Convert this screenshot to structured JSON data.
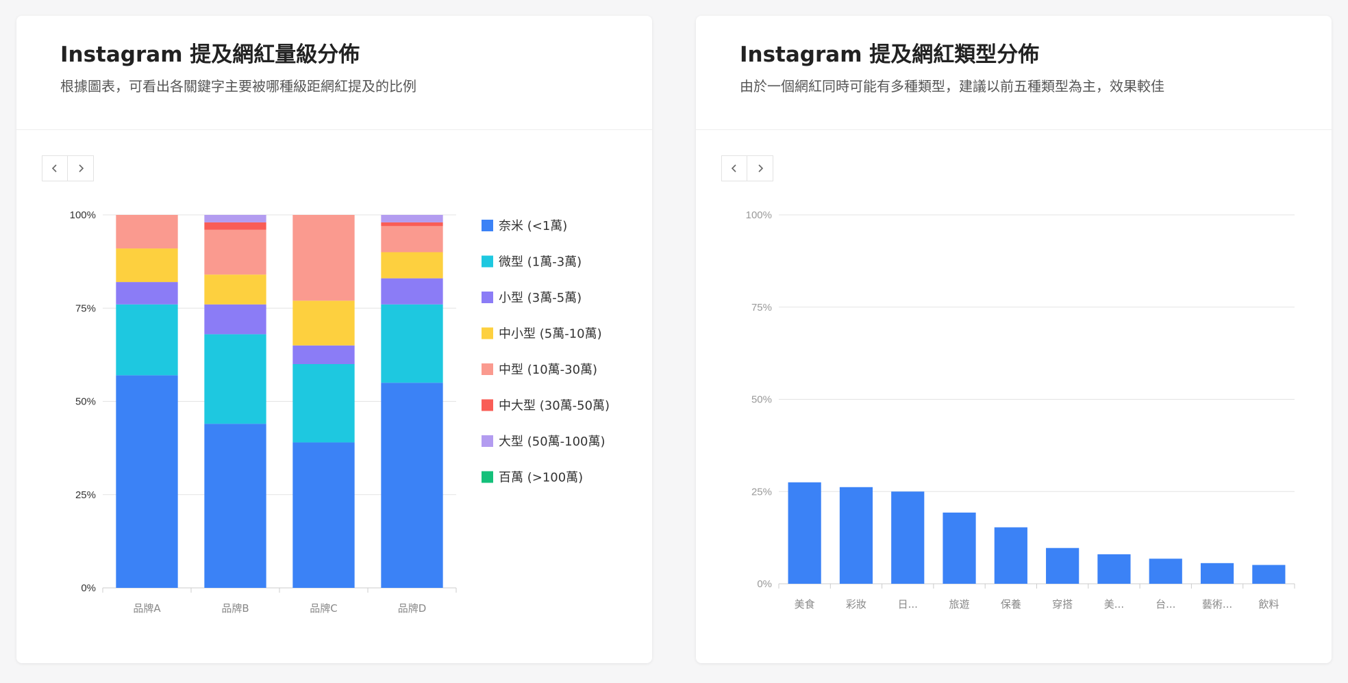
{
  "cards": [
    {
      "title": "Instagram 提及網紅量級分佈",
      "subtitle": "根據圖表，可看出各關鍵字主要被哪種級距網紅提及的比例",
      "pager": {
        "prev_icon": "chevron-left-icon",
        "next_icon": "chevron-right-icon"
      }
    },
    {
      "title": "Instagram 提及網紅類型分佈",
      "subtitle": "由於一個網紅同時可能有多種類型，建議以前五種類型為主，效果較佳",
      "pager": {
        "prev_icon": "chevron-left-icon",
        "next_icon": "chevron-right-icon"
      }
    }
  ],
  "chart_data": [
    {
      "type": "bar",
      "stacked": true,
      "percent": true,
      "categories": [
        "品牌A",
        "品牌B",
        "品牌C",
        "品牌D"
      ],
      "ylim": [
        0,
        100
      ],
      "y_ticks": [
        "0%",
        "25%",
        "50%",
        "75%",
        "100%"
      ],
      "grid": true,
      "legend_position": "right",
      "series": [
        {
          "name": "奈米 (<1萬)",
          "color": "#3b82f6",
          "values": [
            57,
            44,
            39,
            55
          ]
        },
        {
          "name": "微型 (1萬-3萬)",
          "color": "#1ec8e0",
          "values": [
            19,
            24,
            21,
            21
          ]
        },
        {
          "name": "小型 (3萬-5萬)",
          "color": "#8b7cf6",
          "values": [
            6,
            8,
            5,
            7
          ]
        },
        {
          "name": "中小型 (5萬-10萬)",
          "color": "#fdd03f",
          "values": [
            9,
            8,
            12,
            7
          ]
        },
        {
          "name": "中型 (10萬-30萬)",
          "color": "#fa9a8f",
          "values": [
            9,
            12,
            23,
            7
          ]
        },
        {
          "name": "中大型 (30萬-50萬)",
          "color": "#f95d56",
          "values": [
            0,
            2,
            0,
            1
          ]
        },
        {
          "name": "大型 (50萬-100萬)",
          "color": "#b39cf0",
          "values": [
            0,
            2,
            0,
            2
          ]
        },
        {
          "name": "百萬 (>100萬)",
          "color": "#14c07a",
          "values": [
            0,
            0,
            0,
            0
          ]
        }
      ]
    },
    {
      "type": "bar",
      "categories": [
        "美食",
        "彩妝",
        "日...",
        "旅遊",
        "保養",
        "穿搭",
        "美...",
        "台...",
        "藝術...",
        "飲料"
      ],
      "values": [
        27.5,
        26.2,
        25.0,
        19.3,
        15.3,
        9.7,
        8.0,
        6.8,
        5.6,
        5.1
      ],
      "color": "#3b82f6",
      "ylim": [
        0,
        100
      ],
      "y_ticks": [
        "0%",
        "25%",
        "50%",
        "75%",
        "100%"
      ],
      "grid": true
    }
  ]
}
